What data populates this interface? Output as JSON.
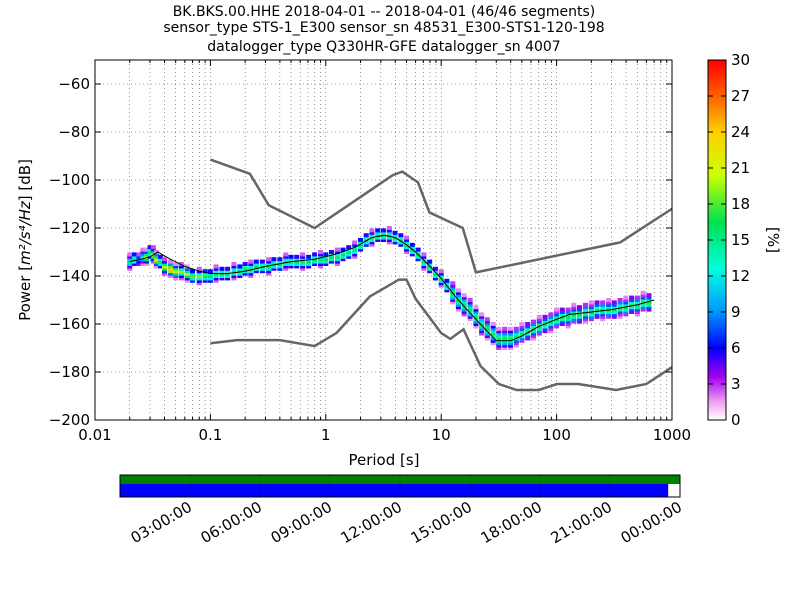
{
  "title_lines": [
    "BK.BKS.00.HHE   2018-04-01 -- 2018-04-01  (46/46 segments)",
    "sensor_type STS-1_E300 sensor_sn 48531_E300-STS1-120-198",
    "datalogger_type Q330HR-GFE datalogger_sn 4007"
  ],
  "chart_data": {
    "type": "heatmap",
    "xlabel": "Period [s]",
    "ylabel": "Power [m²/s⁴/Hz] [dB]",
    "ylabel_parts": {
      "before": "Power [",
      "units": "m²/s⁴/Hz",
      "after": "] [dB]"
    },
    "x_scale": "log",
    "xlim": [
      0.01,
      1000
    ],
    "ylim": [
      -200,
      -50
    ],
    "x_ticks": [
      0.01,
      0.1,
      1,
      10,
      100,
      1000
    ],
    "x_tick_labels": [
      "0.01",
      "0.1",
      "1",
      "10",
      "100",
      "1000"
    ],
    "y_ticks": [
      -200,
      -180,
      -160,
      -140,
      -120,
      -100,
      -80,
      -60
    ],
    "y_tick_labels": [
      "−200",
      "−180",
      "−160",
      "−140",
      "−120",
      "−100",
      "−80",
      "−60"
    ],
    "grid": "dotted",
    "colorbar": {
      "label": "[%]",
      "min": 0,
      "max": 30,
      "ticks": [
        0,
        3,
        6,
        9,
        12,
        15,
        18,
        21,
        24,
        27,
        30
      ],
      "tick_labels": [
        "0",
        "3",
        "6",
        "9",
        "12",
        "15",
        "18",
        "21",
        "24",
        "27",
        "30"
      ],
      "colormap": "pqlx"
    },
    "noise_models": [
      {
        "role": "high",
        "x": [
          0.1,
          0.22,
          0.32,
          0.8,
          3.8,
          4.6,
          6.3,
          7.9,
          15.4,
          20,
          354.8,
          1000
        ],
        "y": [
          -91.5,
          -97.4,
          -110.5,
          -120,
          -98,
          -96.5,
          -101,
          -113.5,
          -120,
          -138.5,
          -126,
          -112
        ]
      },
      {
        "role": "low",
        "x": [
          0.1,
          0.17,
          0.4,
          0.8,
          1.24,
          2.4,
          4.3,
          5,
          6,
          10,
          12,
          15.6,
          21.9,
          31.6,
          45,
          70,
          101,
          154,
          328,
          600,
          1000
        ],
        "y": [
          -168,
          -166.7,
          -166.7,
          -169.2,
          -163.7,
          -148.6,
          -141.5,
          -141.5,
          -149.5,
          -163.8,
          -166.2,
          -162.2,
          -177.5,
          -185,
          -187.5,
          -187.5,
          -185,
          -185,
          -187.5,
          -185,
          -178
        ]
      }
    ],
    "mode": {
      "x": [
        0.02,
        0.025,
        0.03,
        0.035,
        0.045,
        0.06,
        0.08,
        0.1,
        0.14,
        0.2,
        0.3,
        0.5,
        0.8,
        1.2,
        1.8,
        2.5,
        3.2,
        4,
        5,
        6,
        8,
        10,
        13,
        16,
        20,
        25,
        30,
        40,
        50,
        70,
        100,
        130,
        200,
        300,
        500,
        700
      ],
      "y": [
        -134,
        -133,
        -132,
        -130,
        -133,
        -136,
        -138,
        -139,
        -139,
        -138,
        -136,
        -134,
        -133,
        -131,
        -128,
        -124,
        -123,
        -124,
        -127,
        -130,
        -136,
        -141,
        -148,
        -153,
        -158,
        -163,
        -167,
        -167,
        -165,
        -161,
        -158,
        -156,
        -155,
        -154,
        -152,
        -150
      ]
    },
    "pdf_hist": [
      [
        0.02,
        -134,
        14
      ],
      [
        0.022,
        -133,
        16
      ],
      [
        0.024,
        -133,
        8
      ],
      [
        0.026,
        -132,
        12
      ],
      [
        0.028,
        -132,
        20
      ],
      [
        0.03,
        -130,
        16
      ],
      [
        0.032,
        -131,
        20
      ],
      [
        0.034,
        -133,
        23
      ],
      [
        0.037,
        -134,
        16
      ],
      [
        0.04,
        -136,
        20
      ],
      [
        0.045,
        -137,
        24
      ],
      [
        0.05,
        -138,
        22
      ],
      [
        0.056,
        -138,
        18
      ],
      [
        0.063,
        -139,
        20
      ],
      [
        0.07,
        -140,
        18
      ],
      [
        0.08,
        -140,
        18
      ],
      [
        0.09,
        -140,
        17
      ],
      [
        0.1,
        -140,
        16
      ],
      [
        0.112,
        -139,
        16
      ],
      [
        0.126,
        -139,
        16
      ],
      [
        0.141,
        -139,
        16
      ],
      [
        0.16,
        -138,
        16
      ],
      [
        0.18,
        -138,
        16
      ],
      [
        0.2,
        -137,
        16
      ],
      [
        0.224,
        -137,
        16
      ],
      [
        0.25,
        -136,
        16
      ],
      [
        0.282,
        -136,
        16
      ],
      [
        0.32,
        -136,
        16
      ],
      [
        0.355,
        -135,
        16
      ],
      [
        0.4,
        -135,
        16
      ],
      [
        0.45,
        -134,
        16
      ],
      [
        0.5,
        -134,
        16
      ],
      [
        0.56,
        -134,
        16
      ],
      [
        0.63,
        -134,
        16
      ],
      [
        0.71,
        -134,
        16
      ],
      [
        0.8,
        -133,
        16
      ],
      [
        0.9,
        -133,
        16
      ],
      [
        1.0,
        -133,
        16
      ],
      [
        1.12,
        -132,
        16
      ],
      [
        1.26,
        -132,
        16
      ],
      [
        1.41,
        -131,
        16
      ],
      [
        1.58,
        -130,
        16
      ],
      [
        1.78,
        -129,
        16
      ],
      [
        2.0,
        -127,
        16
      ],
      [
        2.24,
        -125,
        16
      ],
      [
        2.51,
        -124,
        16
      ],
      [
        2.82,
        -123,
        16
      ],
      [
        3.16,
        -123,
        16
      ],
      [
        3.55,
        -123,
        16
      ],
      [
        3.98,
        -124,
        16
      ],
      [
        4.47,
        -125,
        16
      ],
      [
        5.01,
        -127,
        16
      ],
      [
        5.62,
        -129,
        16
      ],
      [
        6.31,
        -131,
        16
      ],
      [
        7.08,
        -134,
        16
      ],
      [
        7.94,
        -136,
        16
      ],
      [
        8.91,
        -139,
        16
      ],
      [
        10.0,
        -141,
        16
      ],
      [
        11.2,
        -144,
        16
      ],
      [
        12.6,
        -147,
        16
      ],
      [
        14.1,
        -150,
        16
      ],
      [
        15.8,
        -152,
        16
      ],
      [
        17.8,
        -154,
        16
      ],
      [
        20.0,
        -157,
        16
      ],
      [
        22.4,
        -160,
        16
      ],
      [
        25.1,
        -162,
        16
      ],
      [
        28.2,
        -164,
        16
      ],
      [
        31.6,
        -166,
        16
      ],
      [
        35.5,
        -166,
        16
      ],
      [
        39.8,
        -166,
        16
      ],
      [
        44.7,
        -165,
        16
      ],
      [
        50.1,
        -164,
        16
      ],
      [
        56.2,
        -163,
        16
      ],
      [
        63.1,
        -162,
        16
      ],
      [
        70.8,
        -161,
        16
      ],
      [
        79.4,
        -160,
        16
      ],
      [
        89.1,
        -159,
        16
      ],
      [
        100,
        -158,
        16
      ],
      [
        112,
        -157,
        16
      ],
      [
        126,
        -157,
        16
      ],
      [
        141,
        -156,
        16
      ],
      [
        158,
        -156,
        16
      ],
      [
        178,
        -155,
        16
      ],
      [
        200,
        -155,
        16
      ],
      [
        224,
        -154,
        16
      ],
      [
        251,
        -154,
        16
      ],
      [
        282,
        -154,
        16
      ],
      [
        316,
        -154,
        16
      ],
      [
        355,
        -153,
        16
      ],
      [
        398,
        -153,
        16
      ],
      [
        447,
        -152,
        16
      ],
      [
        501,
        -152,
        16
      ],
      [
        562,
        -151,
        16
      ],
      [
        631,
        -151,
        16
      ]
    ]
  },
  "availability": {
    "time_ticks": [
      "03:00:00",
      "06:00:00",
      "09:00:00",
      "12:00:00",
      "15:00:00",
      "18:00:00",
      "21:00:00",
      "00:00:00"
    ],
    "coverage_fraction": 0.979,
    "data_color": "#0000ff",
    "gap_color": "#ffffff",
    "top_strip_color": "#008000"
  },
  "colors": {
    "noise_model": "#666666",
    "mode_line": "#000000",
    "grid": "#000000"
  }
}
